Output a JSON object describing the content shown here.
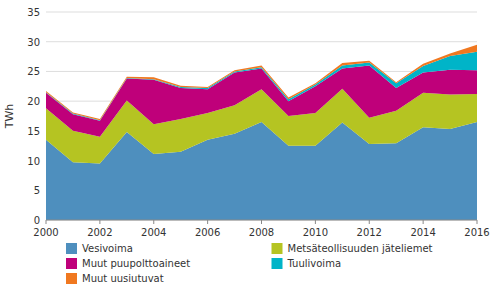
{
  "chart_data": {
    "type": "area",
    "stacked": true,
    "ylabel": "TWh",
    "x": [
      2000,
      2001,
      2002,
      2003,
      2004,
      2005,
      2006,
      2007,
      2008,
      2009,
      2010,
      2011,
      2012,
      2013,
      2014,
      2015,
      2016
    ],
    "series": [
      {
        "name": "Vesivoima",
        "color": "#4e8fbe",
        "values": [
          13.5,
          9.7,
          9.5,
          14.8,
          11.1,
          11.5,
          13.5,
          14.5,
          16.5,
          12.5,
          12.5,
          16.4,
          12.8,
          12.9,
          15.6,
          15.3,
          16.5
        ]
      },
      {
        "name": "Metsäteollisuuden jäteliemet",
        "color": "#b5c422",
        "values": [
          5.3,
          5.3,
          4.5,
          5.3,
          5.0,
          5.5,
          4.5,
          4.8,
          5.5,
          5.0,
          5.5,
          5.7,
          4.4,
          5.5,
          5.8,
          5.8,
          4.7
        ]
      },
      {
        "name": "Muut puupolttoaineet",
        "color": "#bf007a",
        "values": [
          2.6,
          2.8,
          2.7,
          3.7,
          7.5,
          5.2,
          4.0,
          5.5,
          3.5,
          2.5,
          4.5,
          3.4,
          8.8,
          3.8,
          3.4,
          4.2,
          4.0
        ]
      },
      {
        "name": "Tuulivoima",
        "color": "#00b4c8",
        "values": [
          0.1,
          0.1,
          0.1,
          0.1,
          0.1,
          0.2,
          0.2,
          0.2,
          0.2,
          0.3,
          0.3,
          0.5,
          0.5,
          0.8,
          1.1,
          2.3,
          3.1
        ]
      },
      {
        "name": "Muut uusiutuvat",
        "color": "#f07820",
        "values": [
          0.2,
          0.2,
          0.2,
          0.2,
          0.3,
          0.2,
          0.2,
          0.2,
          0.3,
          0.3,
          0.2,
          0.4,
          0.3,
          0.2,
          0.4,
          0.4,
          1.2
        ]
      }
    ],
    "xlim": [
      2000,
      2016
    ],
    "xticks": [
      2000,
      2002,
      2004,
      2006,
      2008,
      2010,
      2012,
      2014,
      2016
    ],
    "ylim": [
      0,
      35
    ],
    "yticks": [
      0,
      5,
      10,
      15,
      20,
      25,
      30,
      35
    ],
    "grid": true,
    "legend": "bottom"
  }
}
